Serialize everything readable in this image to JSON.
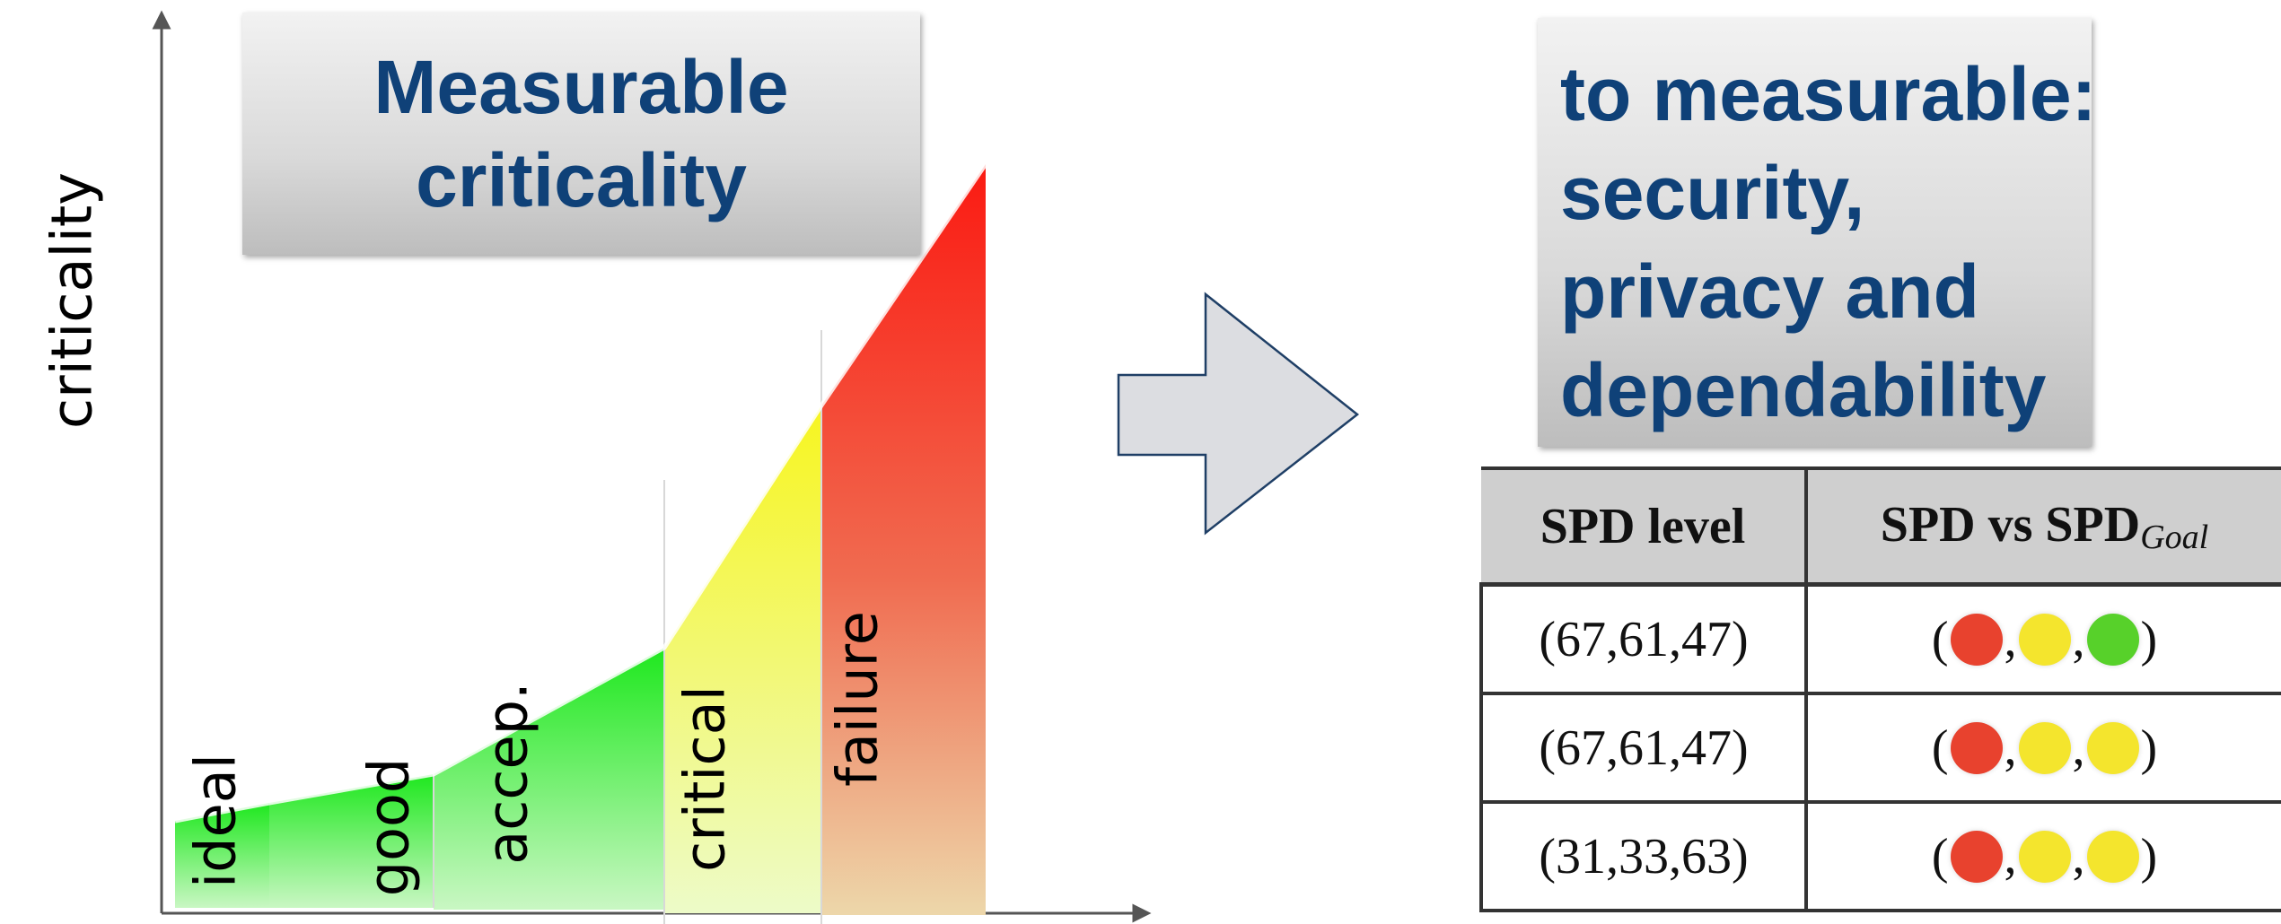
{
  "axis": {
    "y_label": "criticality"
  },
  "left_title": {
    "line1": "Measurable",
    "line2": "criticality"
  },
  "zones": [
    {
      "label": "ideal"
    },
    {
      "label": "good"
    },
    {
      "label": "accep."
    },
    {
      "label": "critical"
    },
    {
      "label": "failure"
    }
  ],
  "arrow": {
    "icon": "right-arrow-icon",
    "fill": "#dcdde1",
    "stroke": "#1f3f66"
  },
  "right_title": {
    "line1": "to measurable:",
    "line2": "security,",
    "line3": "privacy and",
    "line4": "dependability"
  },
  "table": {
    "headers": {
      "level": "SPD level",
      "compare": "SPD vs SPD",
      "compare_sub": "Goal"
    },
    "rows": [
      {
        "level": "(67,61,47)",
        "dots": [
          "#e8422e",
          "#f4e52d",
          "#57d12a"
        ]
      },
      {
        "level": "(67,61,47)",
        "dots": [
          "#e8422e",
          "#f4e52d",
          "#f4e52d"
        ]
      },
      {
        "level": "(31,33,63)",
        "dots": [
          "#e8422e",
          "#f4e52d",
          "#f4e52d"
        ]
      }
    ]
  },
  "colors": {
    "title_text": "#0f4178",
    "green": "#1ee81e",
    "yellow": "#f4f430",
    "red": "#f82a1c"
  }
}
